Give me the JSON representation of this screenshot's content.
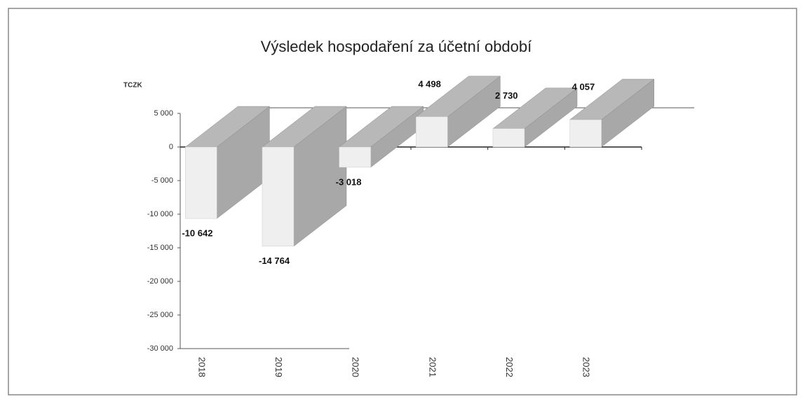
{
  "chart_data": {
    "type": "bar3d",
    "title": "Výsledek hospodaření za účetní období",
    "y_label": "TCZK",
    "categories": [
      "2018",
      "2019",
      "2020",
      "2021",
      "2022",
      "2023"
    ],
    "values": [
      -10642,
      -14764,
      -3018,
      4498,
      2730,
      4057
    ],
    "value_labels": [
      "-10 642",
      "-14 764",
      "-3 018",
      "4 498",
      "2 730",
      "4 057"
    ],
    "color": "#efefef",
    "side_color": "#a8a8a8",
    "ylim": [
      -30000,
      5000
    ],
    "yticks": [
      {
        "value": 5000,
        "label": "5 000"
      },
      0,
      {
        "value": -5000,
        "label": "-5 000"
      },
      {
        "value": -10000,
        "label": "-10 000"
      },
      {
        "value": -15000,
        "label": "-15 000"
      },
      {
        "value": -20000,
        "label": "-20 000"
      },
      {
        "value": -25000,
        "label": "-25 000"
      },
      {
        "value": -30000,
        "label": "-30 000"
      }
    ]
  }
}
